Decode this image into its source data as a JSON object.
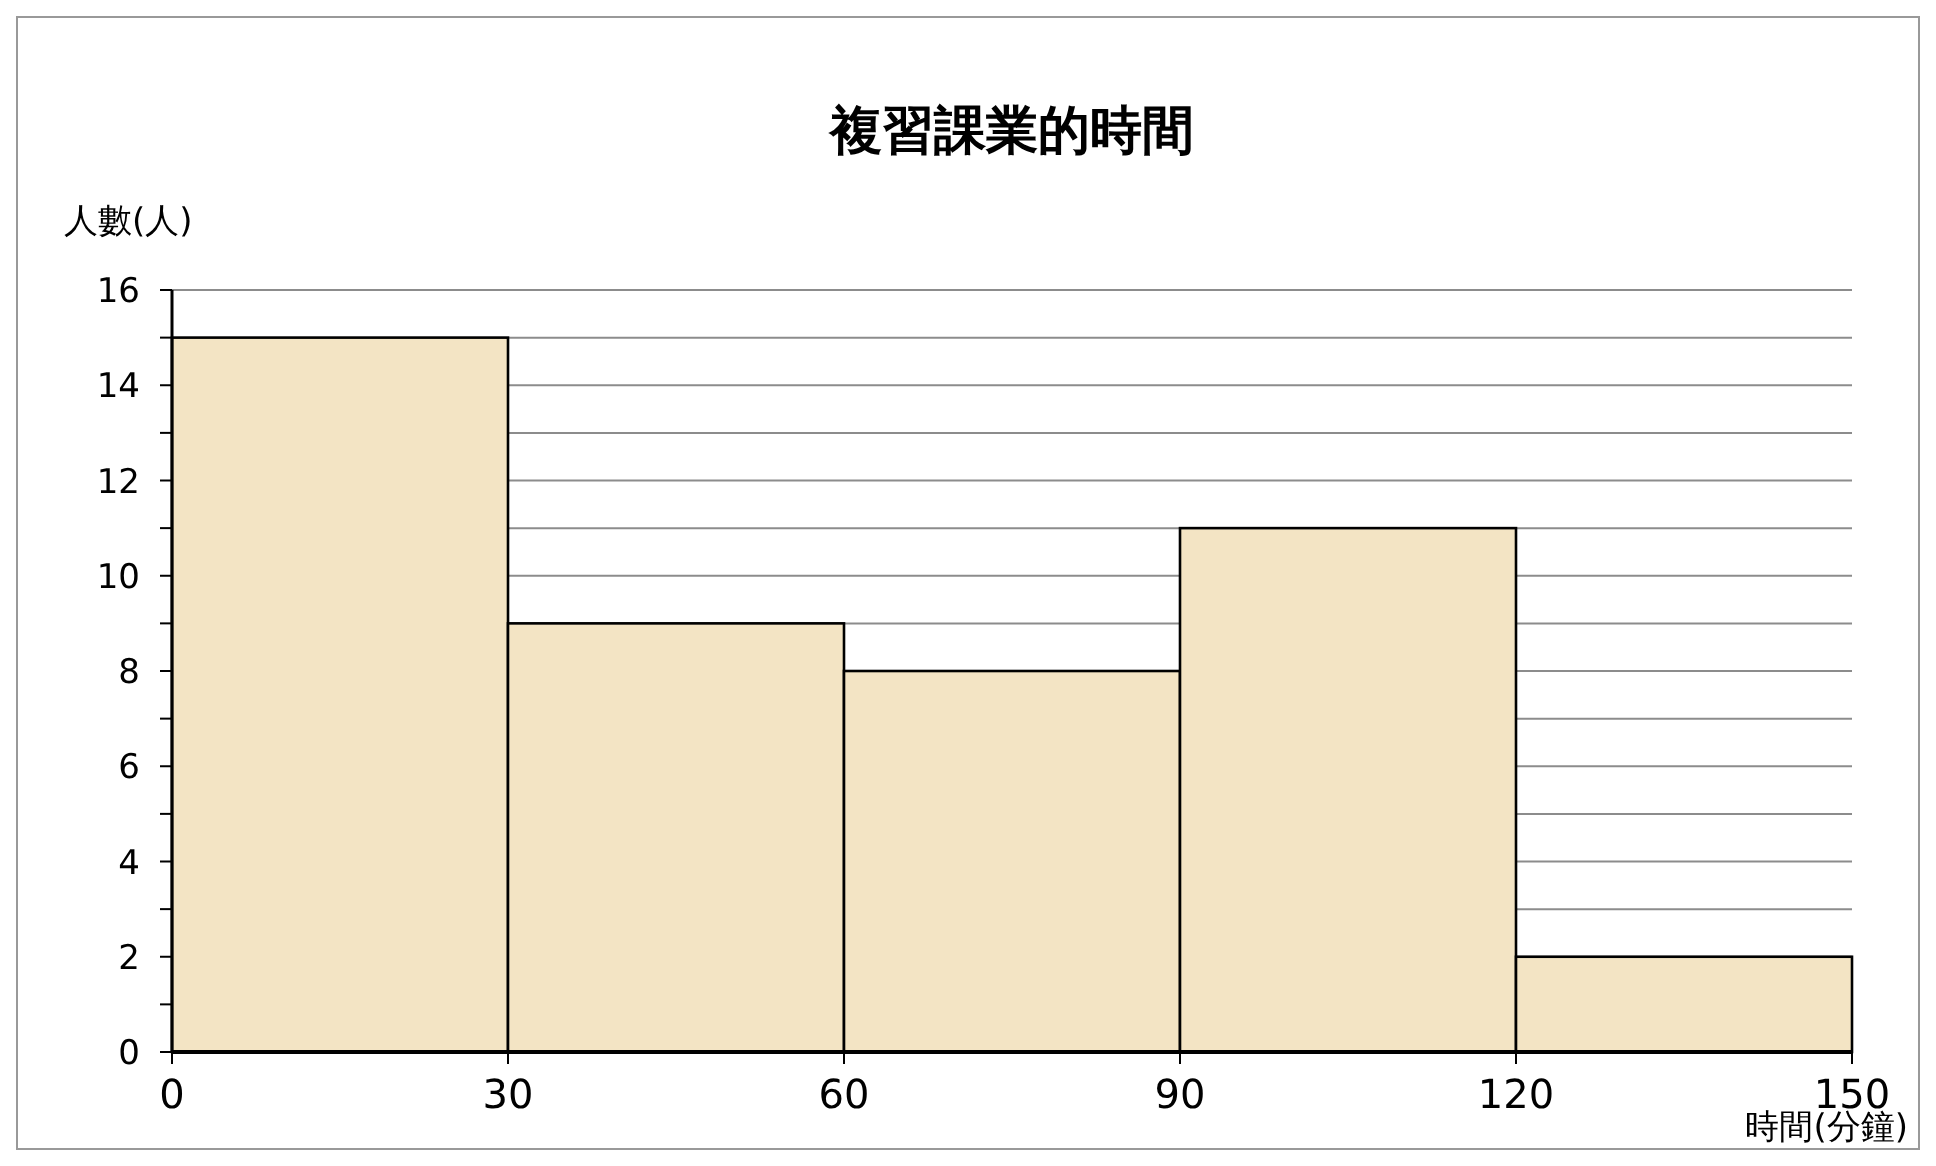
{
  "chart_data": {
    "type": "histogram",
    "title": "複習課業的時間",
    "xlabel": "時間(分鐘)",
    "ylabel": "人數(人)",
    "bins": [
      0,
      30,
      60,
      90,
      120,
      150
    ],
    "values": [
      15,
      9,
      8,
      11,
      2
    ],
    "color": "#f3e4c4",
    "xlim": [
      0,
      150
    ],
    "xticks": [
      0,
      30,
      60,
      90,
      120,
      150
    ],
    "ylim": [
      0,
      16
    ],
    "yticks": [
      0,
      {
        "value": 1,
        "label": null
      },
      2,
      {
        "value": 3,
        "label": null
      },
      4,
      {
        "value": 5,
        "label": null
      },
      6,
      {
        "value": 7,
        "label": null
      },
      8,
      {
        "value": 9,
        "label": null
      },
      10,
      {
        "value": 11,
        "label": null
      },
      12,
      {
        "value": 13,
        "label": null
      },
      14,
      {
        "value": 15,
        "label": null
      },
      16
    ],
    "grid": "y"
  }
}
